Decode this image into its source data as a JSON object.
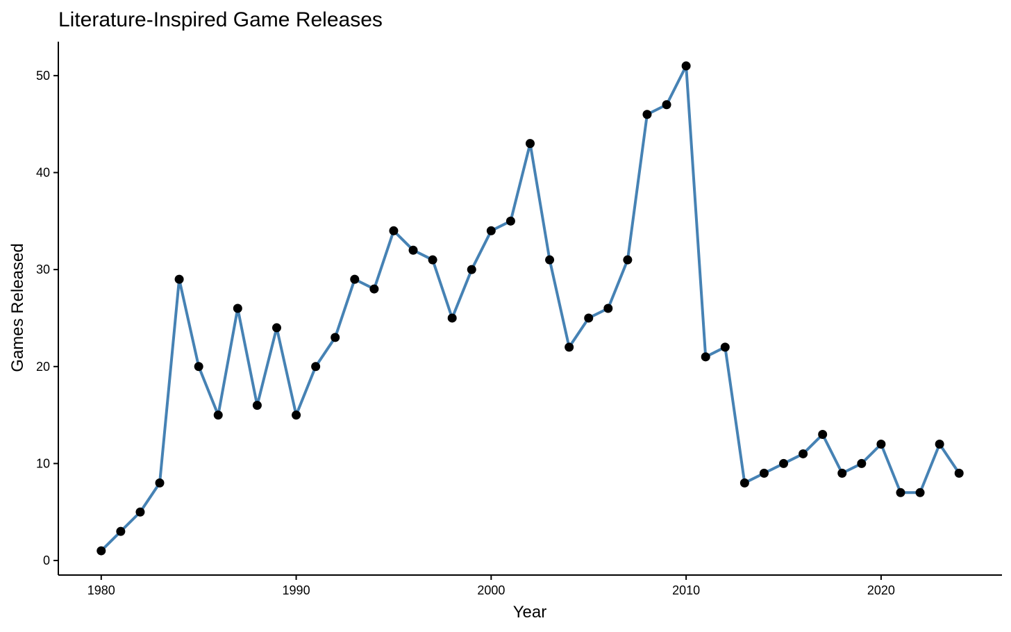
{
  "chart_data": {
    "type": "line",
    "title": "Literature-Inspired Game Releases",
    "xlabel": "Year",
    "ylabel": "Games Released",
    "xlim": [
      1977.8,
      2026.2
    ],
    "ylim": [
      -1.5,
      53.5
    ],
    "x_ticks": [
      1980,
      1990,
      2000,
      2010,
      2020
    ],
    "y_ticks": [
      0,
      10,
      20,
      30,
      40,
      50
    ],
    "grid": false,
    "legend": "none",
    "colors": {
      "line": "#4682B4",
      "point": "#000000"
    },
    "x": [
      1980,
      1981,
      1982,
      1983,
      1984,
      1985,
      1986,
      1987,
      1988,
      1989,
      1990,
      1991,
      1992,
      1993,
      1994,
      1995,
      1996,
      1997,
      1998,
      1999,
      2000,
      2001,
      2002,
      2003,
      2004,
      2005,
      2006,
      2007,
      2008,
      2009,
      2010,
      2011,
      2012,
      2013,
      2014,
      2015,
      2016,
      2017,
      2018,
      2019,
      2020,
      2021,
      2022,
      2023,
      2024
    ],
    "values": [
      1,
      3,
      5,
      8,
      29,
      20,
      15,
      26,
      16,
      24,
      15,
      20,
      23,
      29,
      28,
      34,
      32,
      31,
      25,
      30,
      34,
      35,
      43,
      31,
      22,
      25,
      26,
      31,
      46,
      47,
      51,
      21,
      22,
      8,
      9,
      10,
      11,
      13,
      9,
      10,
      12,
      7,
      7,
      12,
      9
    ]
  }
}
